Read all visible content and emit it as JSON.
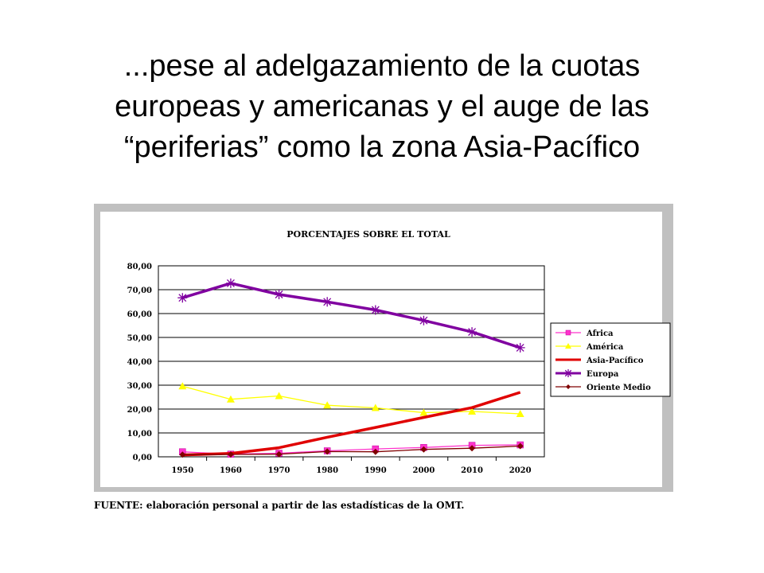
{
  "slide": {
    "title_lines": [
      "...pese al adelgazamiento de la cuotas",
      "europeas y americanas y el auge de las",
      "“periferias” como la zona Asia-Pacífico"
    ],
    "source": "FUENTE: elaboración personal a partir de las estadísticas de la OMT."
  },
  "chart_data": {
    "type": "line",
    "title": "PORCENTAJES SOBRE EL TOTAL",
    "x": [
      "1950",
      "1960",
      "1970",
      "1980",
      "1990",
      "2000",
      "2010",
      "2020"
    ],
    "y_tick_labels": [
      "0,00",
      "10,00",
      "20,00",
      "30,00",
      "40,00",
      "50,00",
      "60,00",
      "70,00",
      "80,00"
    ],
    "ylim": [
      0,
      80
    ],
    "grid": true,
    "legend_position": "right",
    "series": [
      {
        "name": "Africa",
        "color": "#ff33cc",
        "marker": "square",
        "values": [
          2.1,
          1.1,
          1.5,
          2.5,
          3.3,
          3.9,
          4.8,
          5.0
        ]
      },
      {
        "name": "América",
        "color": "#ffff00",
        "marker": "triangle",
        "values": [
          29.6,
          24.1,
          25.5,
          21.6,
          20.5,
          18.5,
          19.0,
          18.0
        ]
      },
      {
        "name": "Asia-Pacífico",
        "color": "#e00000",
        "marker": "none",
        "values": [
          0.8,
          1.4,
          3.8,
          8.2,
          12.3,
          16.5,
          20.6,
          27.0
        ]
      },
      {
        "name": "Europa",
        "color": "#8000a0",
        "marker": "star",
        "values": [
          66.6,
          72.7,
          68.0,
          64.9,
          61.5,
          57.1,
          52.3,
          45.7
        ]
      },
      {
        "name": "Oriente Medio",
        "color": "#800000",
        "marker": "diamond",
        "values": [
          0.9,
          1.0,
          1.1,
          2.2,
          2.1,
          3.1,
          3.6,
          4.5
        ]
      }
    ]
  }
}
